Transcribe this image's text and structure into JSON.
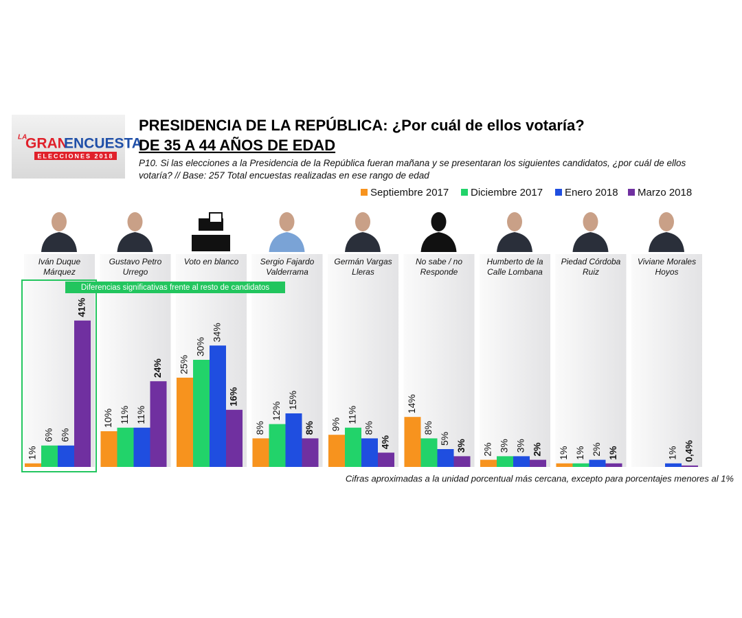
{
  "logo": {
    "prefix": "LA",
    "word1": "GRAN",
    "word2": "ENCUESTA",
    "band": "ELECCIONES 2018"
  },
  "chart_data": {
    "type": "bar",
    "title": "PRESIDENCIA DE LA REPÚBLICA: ¿Por cuál de ellos votaría?",
    "subtitle": "DE 35 A 44 AÑOS DE EDAD",
    "question": "P10. Si las elecciones a la Presidencia de la República fueran mañana y se presentaran los siguientes candidatos, ¿por cuál de ellos votaría?  // Base: 257 Total encuestas realizadas en ese rango de edad",
    "annotation": "Diferencias significativas frente al resto de candidatos",
    "footnote": "Cifras aproximadas a la unidad porcentual más cercana, excepto para porcentajes menores al 1%",
    "categories": [
      "Iván Duque Márquez",
      "Gustavo Petro Urrego",
      "Voto en blanco",
      "Sergio Fajardo Valderrama",
      "Germán Vargas Lleras",
      "No sabe / no Responde",
      "Humberto de la Calle Lombana",
      "Piedad Córdoba Ruiz",
      "Viviane Morales Hoyos"
    ],
    "series": [
      {
        "name": "Septiembre 2017",
        "color": "#f7931e",
        "values": [
          1,
          10,
          25,
          8,
          9,
          14,
          2,
          1,
          null
        ],
        "value_labels": [
          "1%",
          "10%",
          "25%",
          "8%",
          "9%",
          "14%",
          "2%",
          "1%",
          null
        ]
      },
      {
        "name": "Diciembre 2017",
        "color": "#22d36a",
        "values": [
          6,
          11,
          30,
          12,
          11,
          8,
          3,
          1,
          null
        ],
        "value_labels": [
          "6%",
          "11%",
          "30%",
          "12%",
          "11%",
          "8%",
          "3%",
          "1%",
          null
        ]
      },
      {
        "name": "Enero 2018",
        "color": "#1f4ee0",
        "values": [
          6,
          11,
          34,
          15,
          8,
          5,
          3,
          2,
          1
        ],
        "value_labels": [
          "6%",
          "11%",
          "34%",
          "15%",
          "8%",
          "5%",
          "3%",
          "2%",
          "1%"
        ]
      },
      {
        "name": "Marzo 2018",
        "color": "#7030a0",
        "values": [
          41,
          24,
          16,
          8,
          4,
          3,
          2,
          1,
          0.4
        ],
        "value_labels": [
          "41%",
          "24%",
          "16%",
          "8%",
          "4%",
          "3%",
          "2%",
          "1%",
          "0,4%"
        ]
      }
    ]
  }
}
